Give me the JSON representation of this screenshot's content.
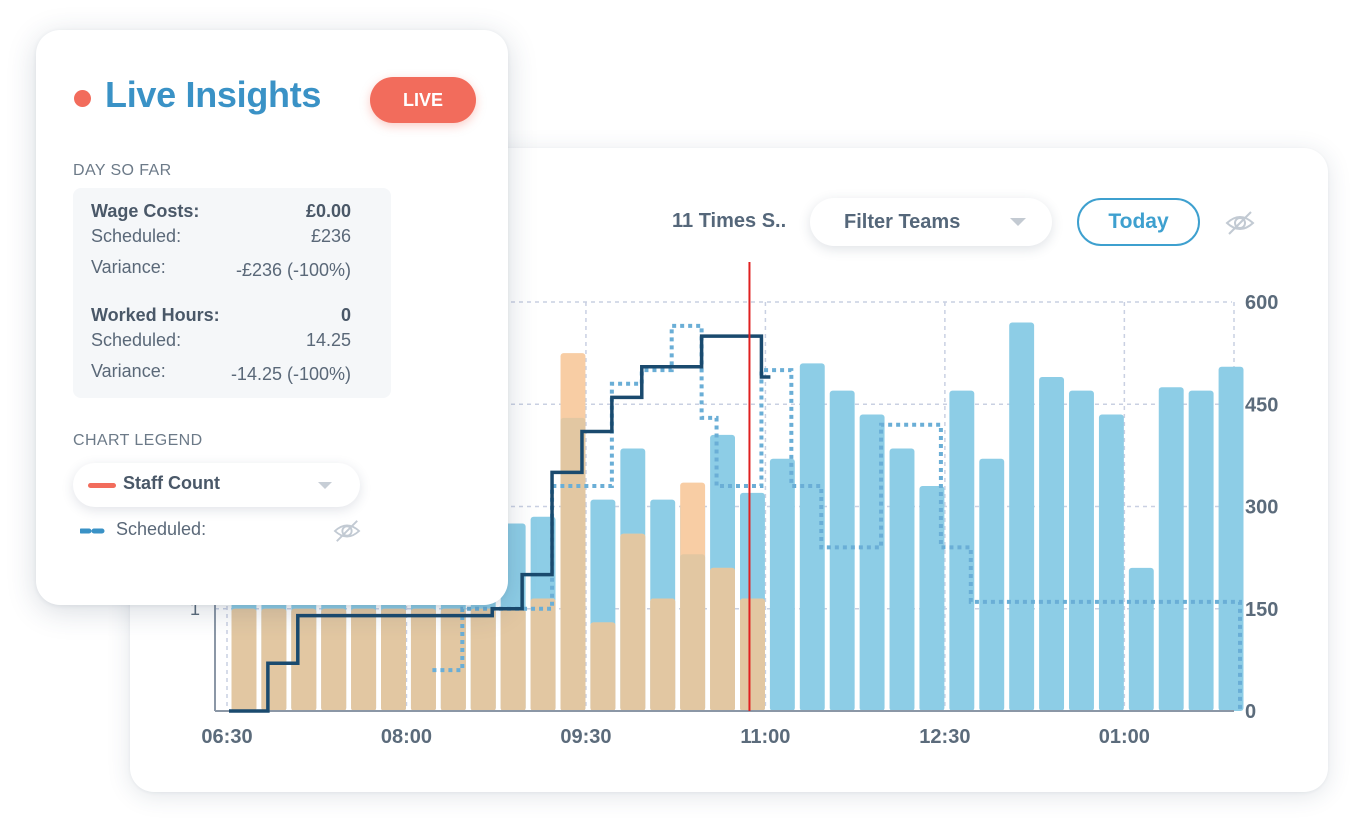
{
  "insights": {
    "title": "Live Insights",
    "live_badge": "LIVE",
    "day_so_far_label": "DAY SO FAR",
    "wage_costs": {
      "label": "Wage Costs:",
      "value": "£0.00",
      "scheduled_label": "Scheduled:",
      "scheduled_value": "£236",
      "variance_label": "Variance:",
      "variance_value": "-£236 (-100%)"
    },
    "worked_hours": {
      "label": "Worked Hours:",
      "value": "0",
      "scheduled_label": "Scheduled:",
      "scheduled_value": "14.25",
      "variance_label": "Variance:",
      "variance_value": "-14.25 (-100%)"
    },
    "chart_legend_label": "CHART LEGEND",
    "legend_selected": "Staff Count",
    "legend_item": "Scheduled:"
  },
  "toolbar": {
    "times_label": "11 Times S..",
    "filter_teams": "Filter Teams",
    "today": "Today"
  },
  "colors": {
    "accent": "#3a92c6",
    "live": "#f26c5c",
    "bar_blue": "#8dcde6",
    "bar_actual": "#e2c7a2",
    "bar_actual_light": "#f8cda4",
    "staff_line": "#1a4a6e",
    "scheduled_line": "#6aaed6",
    "now_line": "#e02020"
  },
  "chart_data": {
    "type": "bar",
    "x_ticks": [
      "06:30",
      "08:00",
      "09:30",
      "11:00",
      "12:30",
      "01:00"
    ],
    "y_ticks_right": [
      "0",
      "150",
      "300",
      "450",
      "600"
    ],
    "left_axis_label": "1",
    "ylim": [
      0,
      600
    ],
    "now_marker": "11:00",
    "slot_range": [
      0,
      34
    ],
    "now_slot": 17.4,
    "x_tick_slots": [
      0,
      6,
      12,
      18,
      24,
      30
    ],
    "forecast_values": [
      190,
      190,
      190,
      190,
      190,
      190,
      190,
      190,
      195,
      275,
      285,
      475,
      310,
      385,
      310,
      305,
      405,
      320,
      370,
      510,
      470,
      435,
      385,
      330,
      470,
      370,
      570,
      490,
      470,
      435,
      210,
      475,
      470,
      505
    ],
    "actual_values": [
      150,
      150,
      150,
      150,
      150,
      150,
      150,
      150,
      150,
      150,
      165,
      525,
      130,
      260,
      165,
      335,
      210,
      165
    ],
    "actual_overlay_values": [
      150,
      150,
      150,
      150,
      150,
      150,
      150,
      150,
      150,
      150,
      165,
      430,
      130,
      260,
      165,
      230,
      210,
      165
    ],
    "staff_count_steps": [
      [
        0,
        0
      ],
      [
        1.3,
        0
      ],
      [
        1.3,
        70
      ],
      [
        2.3,
        70
      ],
      [
        2.3,
        140
      ],
      [
        8.8,
        140
      ],
      [
        8.8,
        150
      ],
      [
        9.8,
        150
      ],
      [
        9.8,
        200
      ],
      [
        10.8,
        200
      ],
      [
        10.8,
        350
      ],
      [
        11.8,
        350
      ],
      [
        11.8,
        410
      ],
      [
        12.8,
        410
      ],
      [
        12.8,
        460
      ],
      [
        13.8,
        460
      ],
      [
        13.8,
        505
      ],
      [
        15.8,
        505
      ],
      [
        15.8,
        550
      ],
      [
        17.8,
        550
      ],
      [
        17.8,
        490
      ],
      [
        18.1,
        490
      ]
    ],
    "scheduled_steps": [
      [
        6.8,
        60
      ],
      [
        7.8,
        60
      ],
      [
        7.8,
        150
      ],
      [
        10.8,
        150
      ],
      [
        10.8,
        330
      ],
      [
        12.8,
        330
      ],
      [
        12.8,
        480
      ],
      [
        13.8,
        480
      ],
      [
        13.8,
        500
      ],
      [
        14.8,
        500
      ],
      [
        14.8,
        565
      ],
      [
        15.8,
        565
      ],
      [
        15.8,
        430
      ],
      [
        16.3,
        430
      ],
      [
        16.3,
        330
      ],
      [
        17.8,
        330
      ],
      [
        17.8,
        500
      ],
      [
        18.8,
        500
      ],
      [
        18.8,
        330
      ],
      [
        19.8,
        330
      ],
      [
        19.8,
        240
      ],
      [
        21.8,
        240
      ],
      [
        21.8,
        420
      ],
      [
        23.8,
        420
      ],
      [
        23.8,
        240
      ],
      [
        24.8,
        240
      ],
      [
        24.8,
        160
      ],
      [
        33.8,
        160
      ],
      [
        33.8,
        0
      ]
    ]
  }
}
